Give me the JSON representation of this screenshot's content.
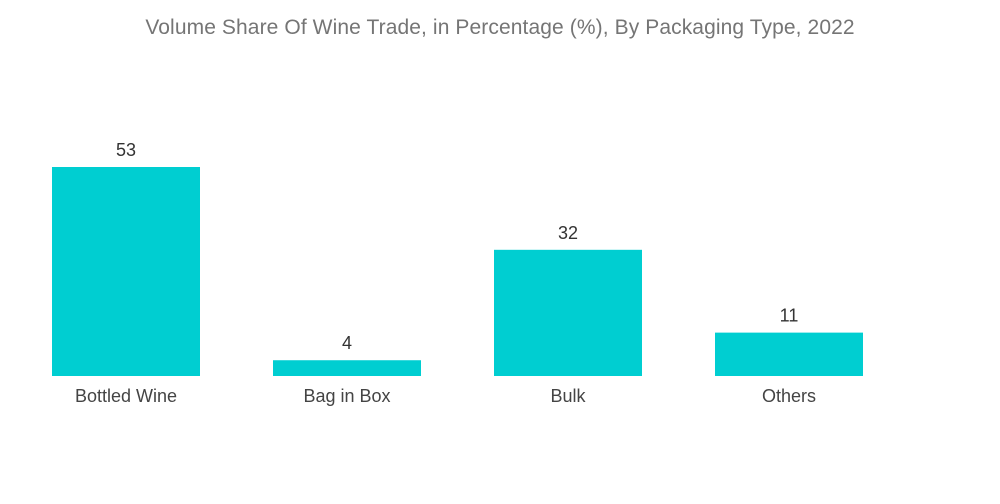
{
  "chart_data": {
    "type": "bar",
    "title": "Volume Share Of Wine Trade, in Percentage (%), By Packaging Type, 2022",
    "xlabel": "",
    "ylabel": "",
    "categories": [
      "Bottled Wine",
      "Bag in Box",
      "Bulk",
      "Others"
    ],
    "values": [
      53,
      4,
      32,
      11
    ],
    "ylim": [
      0,
      53
    ],
    "grid": false,
    "legend": "none",
    "bar_color": "#00ced1"
  }
}
